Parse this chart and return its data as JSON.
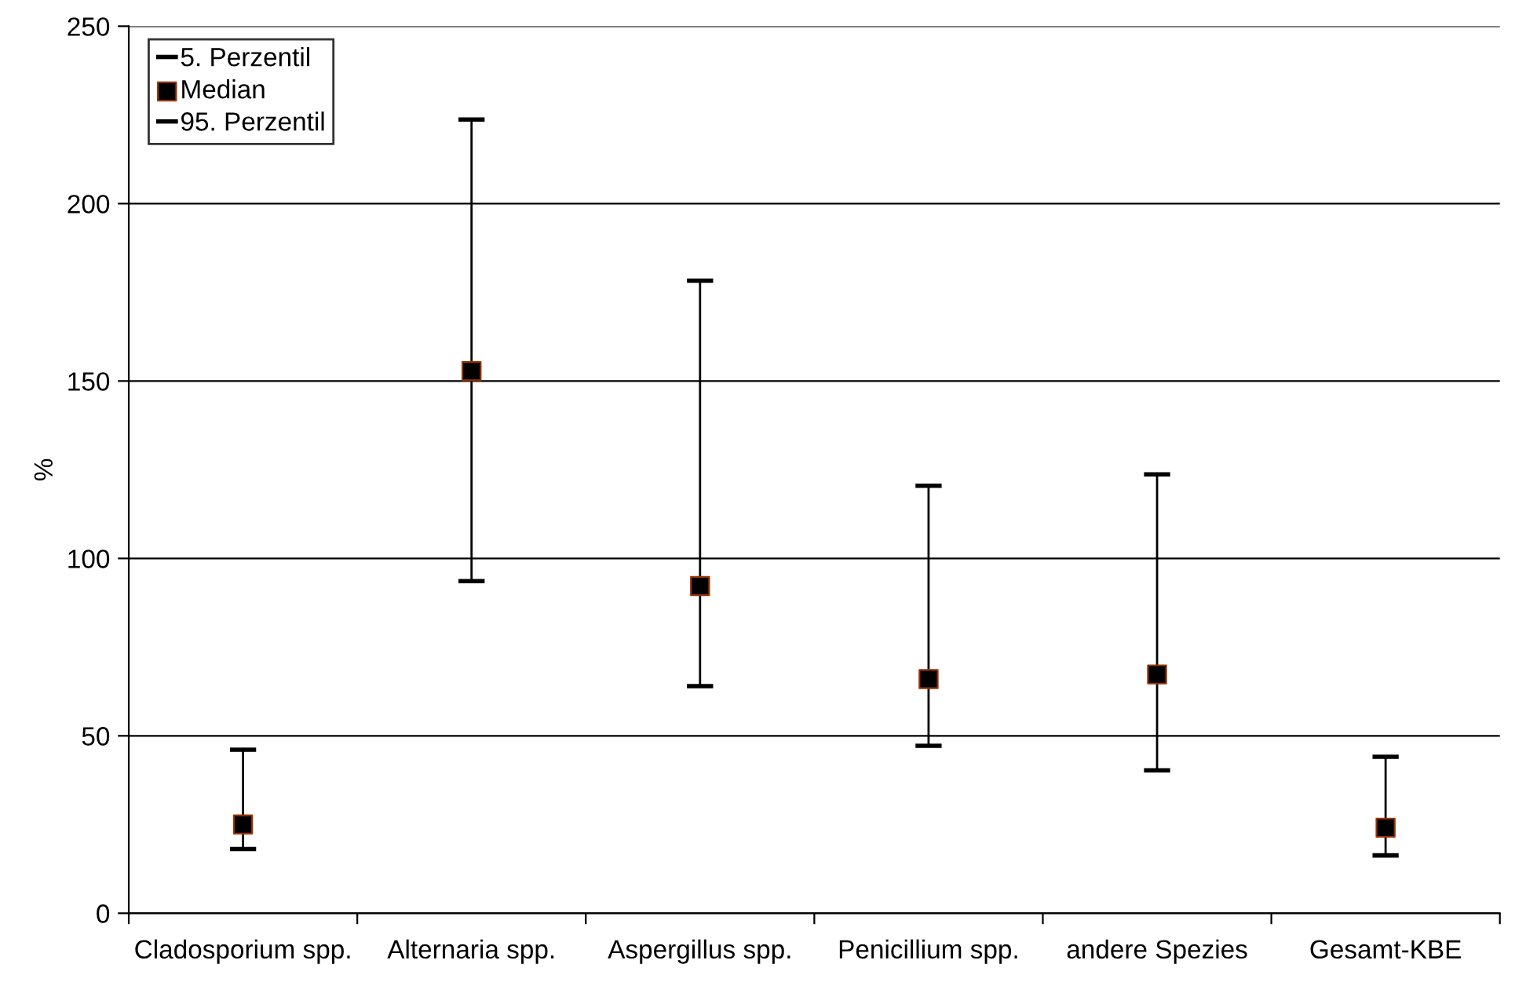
{
  "chart_data": {
    "type": "scatter",
    "ylabel": "%",
    "categories": [
      "Cladosporium spp.",
      "Alternaria spp.",
      "Aspergillus spp.",
      "Penicillium spp.",
      "andere Spezies",
      "Gesamt-KBE"
    ],
    "series": [
      {
        "name": "Median",
        "color": "#000000",
        "values": [
          25.0,
          152.8,
          92.2,
          66.0,
          67.3,
          24.1
        ],
        "errors": [
          [
            18.1,
            46.1
          ],
          [
            93.6,
            223.7
          ],
          [
            64.0,
            178.3
          ],
          [
            47.2,
            120.5
          ],
          [
            40.3,
            123.7
          ],
          [
            16.3,
            44.1
          ]
        ]
      }
    ],
    "annotations": [
      "5. Perzentil",
      "95. Perzentil"
    ],
    "marker": "square",
    "ylim": [
      0,
      250
    ],
    "yticks": [
      0,
      50,
      100,
      150,
      200,
      250
    ],
    "grid": "y",
    "legend": "top left"
  }
}
